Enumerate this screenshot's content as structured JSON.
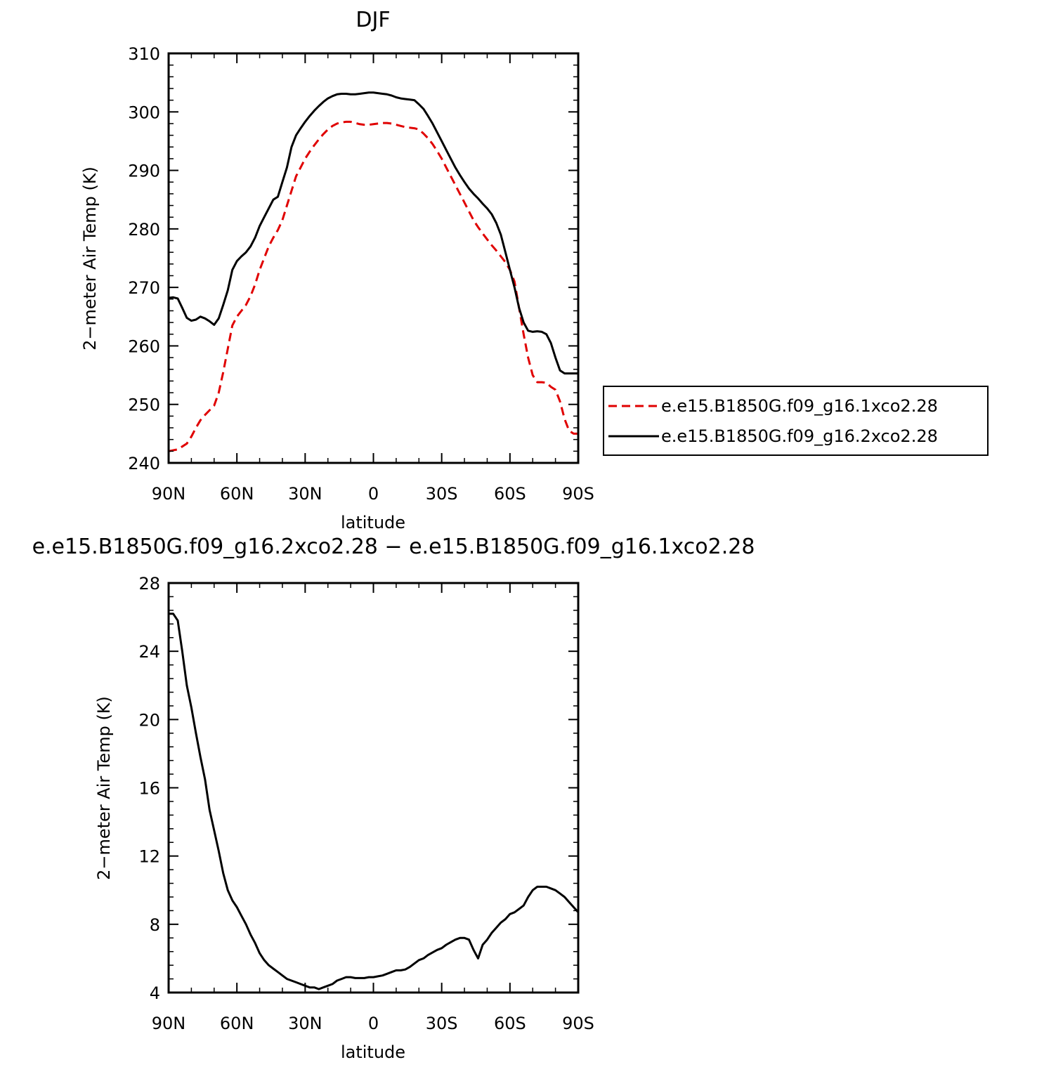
{
  "chart_data": [
    {
      "type": "line",
      "title": "DJF",
      "xlabel": "latitude",
      "ylabel": "2−meter Air Temp (K)",
      "xlim": [
        90,
        -90
      ],
      "ylim": [
        240,
        310
      ],
      "yticks": [
        240,
        250,
        260,
        270,
        280,
        290,
        300,
        310
      ],
      "xticks": [
        {
          "value": 90,
          "label": "90N"
        },
        {
          "value": 60,
          "label": "60N"
        },
        {
          "value": 30,
          "label": "30N"
        },
        {
          "value": 0,
          "label": "0"
        },
        {
          "value": -30,
          "label": "30S"
        },
        {
          "value": -60,
          "label": "60S"
        },
        {
          "value": -90,
          "label": "90S"
        }
      ],
      "grid": false,
      "legend_position": "right",
      "series": [
        {
          "name": "e.e15.B1850G.f09_g16.1xco2.28",
          "color": "#e00000",
          "style": "dashed",
          "x": [
            90,
            86,
            84,
            82,
            80,
            78,
            76,
            74,
            72,
            70,
            68,
            66,
            64,
            62,
            60,
            58,
            56,
            54,
            52,
            50,
            48,
            46,
            44,
            42,
            40,
            38,
            36,
            34,
            32,
            30,
            28,
            26,
            24,
            22,
            20,
            18,
            16,
            14,
            12,
            10,
            8,
            6,
            4,
            2,
            0,
            -2,
            -4,
            -6,
            -8,
            -10,
            -12,
            -14,
            -16,
            -18,
            -20,
            -22,
            -24,
            -26,
            -28,
            -30,
            -32,
            -34,
            -36,
            -38,
            -40,
            -42,
            -44,
            -46,
            -48,
            -50,
            -52,
            -54,
            -56,
            -58,
            -60,
            -62,
            -64,
            -66,
            -68,
            -70,
            -72,
            -74,
            -76,
            -78,
            -80,
            -82,
            -84,
            -86,
            -88,
            -90
          ],
          "values": [
            242,
            242.3,
            242.8,
            243.3,
            244.5,
            246,
            247.3,
            248.2,
            249,
            249.8,
            252,
            255.5,
            259.5,
            263.5,
            265,
            266,
            267,
            268.5,
            270.5,
            273,
            275,
            277,
            278.5,
            279.8,
            281.5,
            284,
            286.5,
            289,
            290.5,
            292,
            293.2,
            294.3,
            295.3,
            296.2,
            297,
            297.6,
            298,
            298.2,
            298.3,
            298.3,
            298.1,
            297.9,
            297.8,
            297.8,
            297.9,
            298,
            298.1,
            298.1,
            298,
            297.8,
            297.6,
            297.4,
            297.3,
            297.2,
            297,
            296.3,
            295.5,
            294.5,
            293.3,
            292,
            290.5,
            289,
            287.5,
            286,
            284.5,
            283,
            281.5,
            280.3,
            279.2,
            278.2,
            277.2,
            276.3,
            275.3,
            274.3,
            273,
            271,
            266.5,
            262,
            258,
            255,
            253.8,
            253.8,
            253.7,
            253,
            252.5,
            250.5,
            247.5,
            245.5,
            245,
            245
          ]
        },
        {
          "name": "e.e15.B1850G.f09_g16.2xco2.28",
          "color": "#000000",
          "style": "solid",
          "x": [
            90,
            88,
            86,
            84,
            82,
            80,
            78,
            76,
            74,
            72,
            70,
            68,
            66,
            64,
            62,
            60,
            58,
            56,
            54,
            52,
            50,
            48,
            46,
            44,
            42,
            40,
            38,
            36,
            34,
            32,
            30,
            28,
            26,
            24,
            22,
            20,
            18,
            16,
            14,
            12,
            10,
            8,
            6,
            4,
            2,
            0,
            -2,
            -4,
            -6,
            -8,
            -10,
            -12,
            -14,
            -16,
            -18,
            -20,
            -22,
            -24,
            -26,
            -28,
            -30,
            -32,
            -34,
            -36,
            -38,
            -40,
            -42,
            -44,
            -46,
            -48,
            -50,
            -52,
            -54,
            -56,
            -58,
            -60,
            -62,
            -64,
            -66,
            -68,
            -70,
            -72,
            -74,
            -76,
            -78,
            -80,
            -82,
            -84,
            -86,
            -88,
            -90
          ],
          "values": [
            268.2,
            268.3,
            268.1,
            266.5,
            264.8,
            264.3,
            264.5,
            265,
            264.7,
            264.2,
            263.6,
            264.7,
            267,
            269.5,
            273,
            274.5,
            275.3,
            276,
            277,
            278.5,
            280.5,
            282,
            283.5,
            285,
            285.5,
            288,
            290.5,
            294,
            296,
            297.2,
            298.3,
            299.3,
            300.2,
            301,
            301.7,
            302.3,
            302.7,
            303,
            303.1,
            303.1,
            303,
            303,
            303.1,
            303.2,
            303.3,
            303.3,
            303.2,
            303.1,
            303,
            302.8,
            302.5,
            302.3,
            302.2,
            302.1,
            302,
            301.3,
            300.5,
            299.3,
            298,
            296.5,
            295,
            293.5,
            292,
            290.5,
            289.2,
            288,
            286.9,
            286,
            285.2,
            284.3,
            283.5,
            282.5,
            281,
            279,
            276,
            273,
            270,
            266.5,
            264,
            262.6,
            262.4,
            262.5,
            262.4,
            262,
            260.5,
            258,
            255.8,
            255.3,
            255.3,
            255.3,
            255.3
          ]
        }
      ]
    },
    {
      "type": "line",
      "title": "e.e15.B1850G.f09_g16.2xco2.28 − e.e15.B1850G.f09_g16.1xco2.28",
      "xlabel": "latitude",
      "ylabel": "2−meter Air Temp (K)",
      "xlim": [
        90,
        -90
      ],
      "ylim": [
        4,
        28
      ],
      "yticks": [
        4,
        8,
        12,
        16,
        20,
        24,
        28
      ],
      "xticks": [
        {
          "value": 90,
          "label": "90N"
        },
        {
          "value": 60,
          "label": "60N"
        },
        {
          "value": 30,
          "label": "30N"
        },
        {
          "value": 0,
          "label": "0"
        },
        {
          "value": -30,
          "label": "30S"
        },
        {
          "value": -60,
          "label": "60S"
        },
        {
          "value": -90,
          "label": "90S"
        }
      ],
      "grid": false,
      "series": [
        {
          "color": "#000000",
          "style": "solid",
          "x": [
            90,
            88,
            86,
            84,
            82,
            80,
            78,
            76,
            74,
            72,
            70,
            68,
            66,
            64,
            62,
            60,
            58,
            56,
            54,
            52,
            50,
            48,
            46,
            44,
            42,
            40,
            38,
            36,
            34,
            32,
            30,
            28,
            26,
            24,
            22,
            20,
            18,
            16,
            14,
            12,
            10,
            8,
            6,
            4,
            2,
            0,
            -2,
            -4,
            -6,
            -8,
            -10,
            -12,
            -14,
            -16,
            -18,
            -20,
            -22,
            -24,
            -26,
            -28,
            -30,
            -32,
            -34,
            -36,
            -38,
            -40,
            -42,
            -44,
            -46,
            -48,
            -50,
            -52,
            -54,
            -56,
            -58,
            -60,
            -62,
            -64,
            -66,
            -68,
            -70,
            -72,
            -74,
            -76,
            -78,
            -80,
            -82,
            -84,
            -86,
            -88,
            -90
          ],
          "values": [
            26.2,
            26.2,
            25.8,
            24,
            22,
            20.7,
            19.2,
            17.8,
            16.5,
            14.7,
            13.5,
            12.3,
            11,
            10,
            9.4,
            9,
            8.5,
            8,
            7.4,
            6.9,
            6.3,
            5.9,
            5.6,
            5.4,
            5.2,
            5,
            4.8,
            4.7,
            4.6,
            4.5,
            4.4,
            4.3,
            4.3,
            4.2,
            4.3,
            4.4,
            4.5,
            4.7,
            4.8,
            4.9,
            4.9,
            4.85,
            4.85,
            4.85,
            4.9,
            4.9,
            4.95,
            5,
            5.1,
            5.2,
            5.3,
            5.3,
            5.35,
            5.5,
            5.7,
            5.9,
            6,
            6.2,
            6.35,
            6.5,
            6.6,
            6.8,
            6.95,
            7.1,
            7.2,
            7.2,
            7.1,
            6.5,
            6,
            6.8,
            7.1,
            7.5,
            7.8,
            8.1,
            8.3,
            8.6,
            8.7,
            8.9,
            9.1,
            9.6,
            10,
            10.2,
            10.2,
            10.2,
            10.1,
            10,
            9.8,
            9.6,
            9.3,
            9.0,
            8.7
          ]
        }
      ]
    }
  ]
}
